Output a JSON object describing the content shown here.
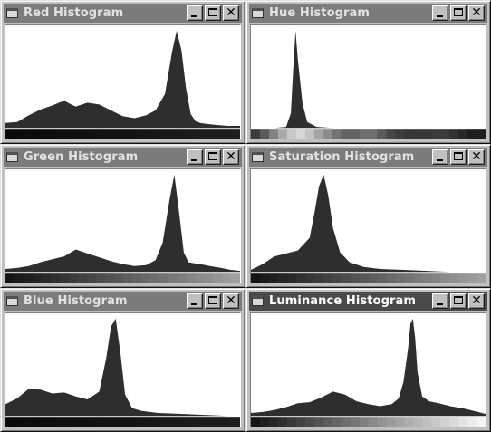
{
  "windows": [
    {
      "title": "Red Histogram",
      "active": false,
      "channel": "red",
      "colorbar": "dark",
      "chart_data": {
        "type": "area",
        "x": [
          0,
          0.05,
          0.1,
          0.15,
          0.2,
          0.25,
          0.28,
          0.3,
          0.35,
          0.4,
          0.45,
          0.5,
          0.55,
          0.6,
          0.64,
          0.68,
          0.71,
          0.73,
          0.75,
          0.77,
          0.79,
          0.81,
          0.83,
          0.86,
          0.9,
          0.95,
          1
        ],
        "values": [
          0.05,
          0.06,
          0.13,
          0.19,
          0.23,
          0.28,
          0.24,
          0.22,
          0.26,
          0.24,
          0.18,
          0.12,
          0.1,
          0.13,
          0.18,
          0.35,
          0.78,
          1.0,
          0.8,
          0.4,
          0.14,
          0.07,
          0.05,
          0.04,
          0.03,
          0.02,
          0.02
        ]
      }
    },
    {
      "title": "Hue Histogram",
      "active": false,
      "channel": "hue",
      "colorbar": "hue",
      "chart_data": {
        "type": "area",
        "x": [
          0,
          0.1,
          0.15,
          0.17,
          0.18,
          0.19,
          0.2,
          0.22,
          0.24,
          0.28,
          0.35,
          0.5,
          1
        ],
        "values": [
          0.0,
          0.0,
          0.01,
          0.15,
          0.6,
          1.0,
          0.7,
          0.25,
          0.06,
          0.01,
          0.0,
          0.0,
          0.0
        ]
      }
    },
    {
      "title": "Green Histogram",
      "active": false,
      "channel": "green",
      "colorbar": "gradient",
      "chart_data": {
        "type": "area",
        "x": [
          0,
          0.05,
          0.1,
          0.15,
          0.2,
          0.25,
          0.3,
          0.35,
          0.4,
          0.45,
          0.5,
          0.55,
          0.6,
          0.64,
          0.67,
          0.7,
          0.72,
          0.74,
          0.76,
          0.78,
          0.8,
          0.83,
          0.87,
          0.92,
          0.96,
          1
        ],
        "values": [
          0.03,
          0.04,
          0.06,
          0.1,
          0.13,
          0.16,
          0.23,
          0.19,
          0.15,
          0.11,
          0.08,
          0.06,
          0.07,
          0.12,
          0.3,
          0.75,
          1.0,
          0.62,
          0.2,
          0.1,
          0.09,
          0.08,
          0.06,
          0.04,
          0.02,
          0.01
        ]
      }
    },
    {
      "title": "Saturation Histogram",
      "active": false,
      "channel": "saturation",
      "colorbar": "gradient",
      "chart_data": {
        "type": "area",
        "x": [
          0,
          0.05,
          0.1,
          0.15,
          0.2,
          0.25,
          0.27,
          0.29,
          0.31,
          0.33,
          0.35,
          0.38,
          0.42,
          0.48,
          0.55,
          0.65,
          0.75,
          0.85,
          1
        ],
        "values": [
          0.02,
          0.08,
          0.16,
          0.19,
          0.22,
          0.35,
          0.6,
          0.88,
          1.0,
          0.78,
          0.45,
          0.2,
          0.1,
          0.05,
          0.03,
          0.02,
          0.01,
          0.0,
          0.0
        ]
      }
    },
    {
      "title": "Blue Histogram",
      "active": false,
      "channel": "blue",
      "colorbar": "dark",
      "chart_data": {
        "type": "area",
        "x": [
          0,
          0.05,
          0.1,
          0.15,
          0.2,
          0.25,
          0.3,
          0.35,
          0.4,
          0.43,
          0.45,
          0.47,
          0.49,
          0.51,
          0.54,
          0.58,
          0.65,
          0.75,
          0.85,
          0.95,
          1
        ],
        "values": [
          0.12,
          0.18,
          0.28,
          0.27,
          0.23,
          0.24,
          0.2,
          0.17,
          0.25,
          0.6,
          0.92,
          1.0,
          0.65,
          0.22,
          0.08,
          0.05,
          0.03,
          0.02,
          0.01,
          0.0,
          0.0
        ]
      }
    },
    {
      "title": "Luminance Histogram",
      "active": true,
      "channel": "luminance",
      "colorbar": "gray-steps",
      "chart_data": {
        "type": "area",
        "x": [
          0,
          0.05,
          0.1,
          0.15,
          0.2,
          0.25,
          0.3,
          0.35,
          0.4,
          0.45,
          0.5,
          0.55,
          0.6,
          0.63,
          0.65,
          0.67,
          0.68,
          0.69,
          0.7,
          0.71,
          0.73,
          0.76,
          0.8,
          0.85,
          0.9,
          0.95,
          1
        ],
        "values": [
          0.03,
          0.04,
          0.06,
          0.09,
          0.13,
          0.14,
          0.19,
          0.25,
          0.22,
          0.15,
          0.12,
          0.1,
          0.12,
          0.18,
          0.35,
          0.7,
          0.95,
          1.0,
          0.8,
          0.45,
          0.2,
          0.15,
          0.13,
          0.1,
          0.08,
          0.05,
          0.02
        ]
      }
    }
  ]
}
